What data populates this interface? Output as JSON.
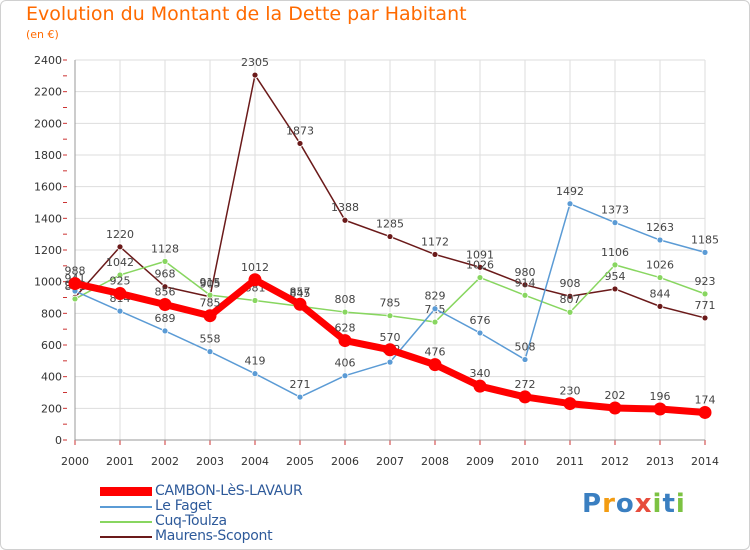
{
  "chart_data": {
    "type": "line",
    "title": "Evolution du Montant de la Dette par Habitant",
    "subtitle": "(en €)",
    "xlabel": "",
    "ylabel": "",
    "ylim": [
      0,
      2400
    ],
    "yticks": [
      0,
      200,
      400,
      600,
      800,
      1000,
      1200,
      1400,
      1600,
      1800,
      2000,
      2200,
      2400
    ],
    "categories": [
      "2000",
      "2001",
      "2002",
      "2003",
      "2004",
      "2005",
      "2006",
      "2007",
      "2008",
      "2009",
      "2010",
      "2011",
      "2012",
      "2013",
      "2014"
    ],
    "grid": true,
    "legend_position": "bottom-left",
    "series": [
      {
        "name": "Maurens-Scopont",
        "color": "#6b1a1a",
        "values": [
          901,
          1220,
          968,
          905,
          2305,
          1873,
          1388,
          1285,
          1172,
          1091,
          980,
          908,
          954,
          844,
          771
        ],
        "labels": [
          "901",
          "1220",
          "968",
          "905",
          "2305",
          "1873",
          "1388",
          "1285",
          "1172",
          "1091",
          "980",
          "908",
          "954",
          "844",
          "771"
        ]
      },
      {
        "name": "Cuq-Toulza",
        "color": "#88d660",
        "values": [
          891,
          1042,
          1128,
          915,
          881,
          845,
          808,
          785,
          745,
          1026,
          914,
          807,
          1106,
          1026,
          923
        ],
        "labels": [
          "891",
          "1042",
          "1128",
          "915",
          "881",
          "845",
          "808",
          "785",
          "745",
          "1026",
          "914",
          "807",
          "1106",
          "1026",
          "923"
        ]
      },
      {
        "name": "Le Faget",
        "color": "#5b9bd5",
        "values": [
          941,
          814,
          689,
          558,
          419,
          271,
          406,
          492,
          829,
          676,
          508,
          1492,
          1373,
          1263,
          1185
        ],
        "labels": [
          "941",
          "814",
          "689",
          "558",
          "419",
          "271",
          "406",
          "492",
          "829",
          "676",
          "508",
          "1492",
          "1373",
          "1263",
          "1185"
        ]
      },
      {
        "name": "CAMBON-LèS-LAVAUR",
        "color": "#ff0000",
        "values": [
          988,
          925,
          856,
          785,
          1012,
          857,
          628,
          570,
          476,
          340,
          272,
          230,
          202,
          196,
          174
        ],
        "labels": [
          "988",
          "925",
          "856",
          "785",
          "1012",
          "857",
          "628",
          "570",
          "476",
          "340",
          "272",
          "230",
          "202",
          "196",
          "174"
        ]
      }
    ]
  },
  "legend": [
    {
      "label": "CAMBON-LèS-LAVAUR",
      "color": "#ff0000"
    },
    {
      "label": "Le Faget",
      "color": "#5b9bd5"
    },
    {
      "label": "Cuq-Toulza",
      "color": "#88d660"
    },
    {
      "label": "Maurens-Scopont",
      "color": "#6b1a1a"
    }
  ],
  "logo": {
    "letters": [
      "P",
      "r",
      "o",
      "x",
      "i",
      "t",
      "i"
    ],
    "colors": [
      "#3a7fc1",
      "#f39c12",
      "#3a7fc1",
      "#e74c3c",
      "#7cc242",
      "#3a7fc1",
      "#7cc242"
    ]
  }
}
